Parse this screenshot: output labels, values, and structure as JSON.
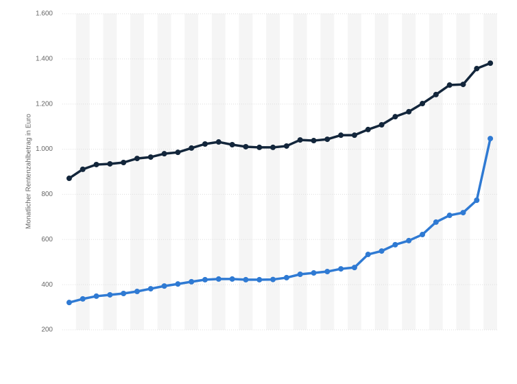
{
  "chart_data": {
    "type": "line",
    "y_label": "Monatlicher Rentenzahlbetrag in Euro",
    "categories": [
      null,
      null,
      null,
      null,
      null,
      null,
      null,
      null,
      null,
      null,
      null,
      null,
      null,
      null,
      null,
      null,
      null,
      null,
      null,
      null,
      null,
      null,
      null,
      null,
      null,
      null,
      null,
      null,
      null,
      null,
      null,
      null
    ],
    "series": [
      {
        "color": "#13263b",
        "values": [
          871,
          911,
          932,
          935,
          941,
          959,
          965,
          980,
          986,
          1005,
          1023,
          1032,
          1020,
          1011,
          1008,
          1008,
          1014,
          1041,
          1038,
          1044,
          1062,
          1062,
          1087,
          1108,
          1144,
          1166,
          1202,
          1242,
          1284,
          1287,
          1357,
          1381
        ]
      },
      {
        "color": "#2f7ad3",
        "values": [
          321,
          337,
          349,
          355,
          361,
          370,
          382,
          394,
          403,
          413,
          422,
          425,
          425,
          422,
          422,
          423,
          431,
          446,
          452,
          458,
          470,
          476,
          534,
          549,
          577,
          595,
          622,
          677,
          707,
          719,
          774,
          1047
        ]
      }
    ],
    "ylim": [
      200,
      1600
    ],
    "yticks": [
      200,
      400,
      600,
      800,
      {
        "value": 1000,
        "label": "1.000"
      },
      {
        "value": 1200,
        "label": "1.200"
      },
      {
        "value": 1400,
        "label": "1.400"
      },
      {
        "value": 1600,
        "label": "1.600"
      }
    ],
    "grid": true
  }
}
